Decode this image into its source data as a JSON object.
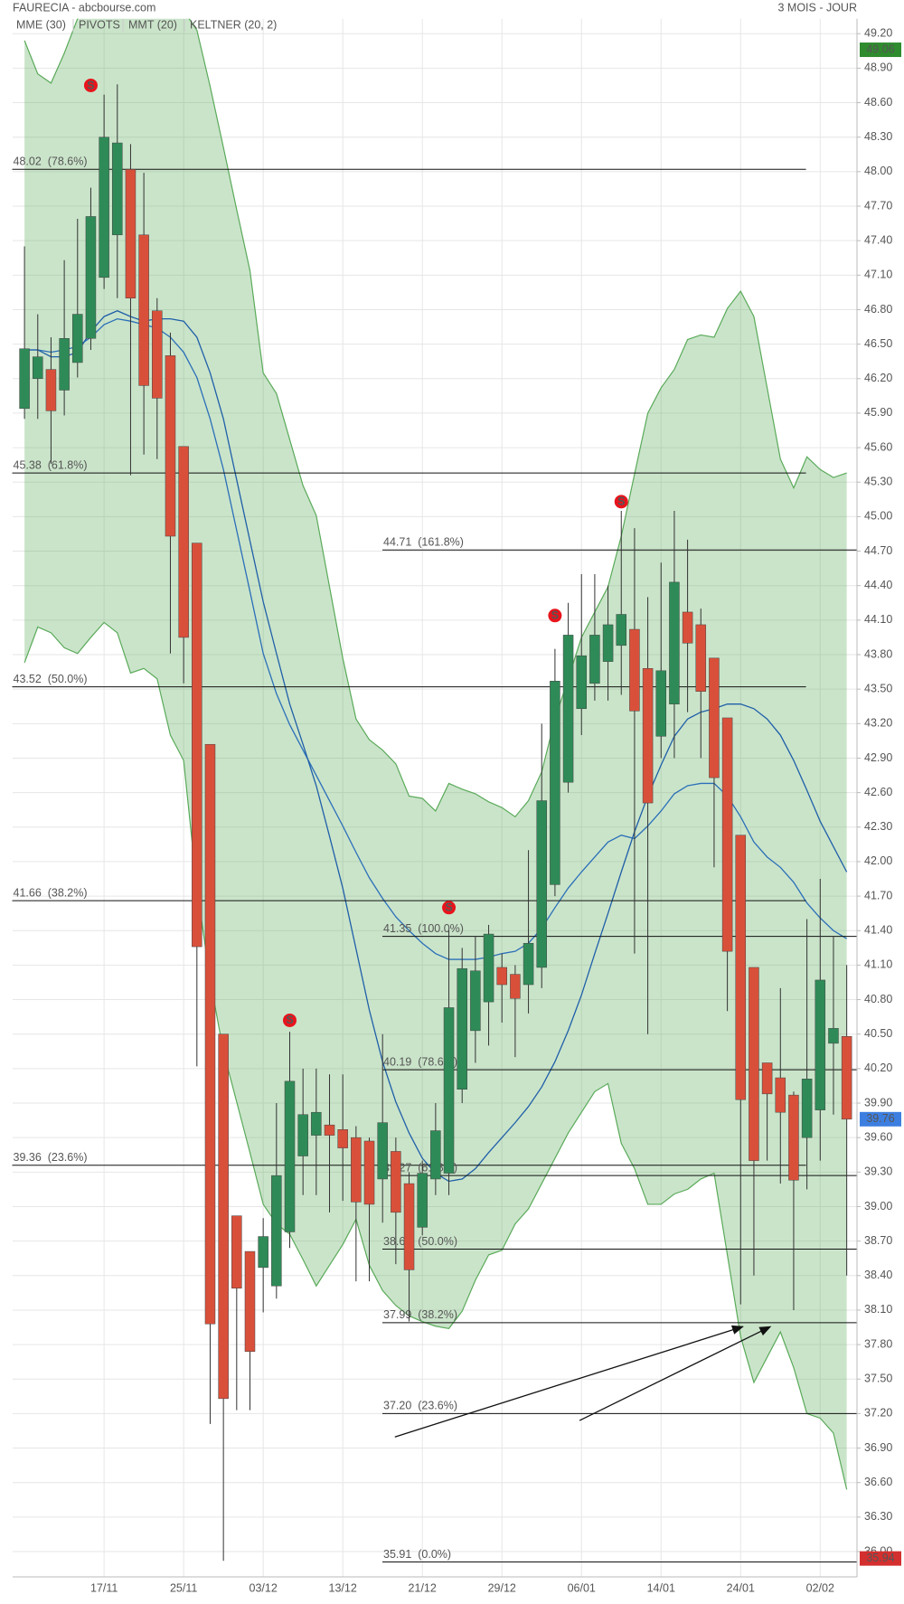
{
  "chart_data": {
    "type": "candlestick",
    "title": "FAURECIA - abcbourse.com",
    "period": "3 MOIS - JOUR",
    "categories": [
      null,
      null,
      null,
      null,
      null,
      null,
      "17/11",
      null,
      null,
      null,
      null,
      null,
      "25/11",
      null,
      null,
      null,
      null,
      null,
      "03/12",
      null,
      null,
      null,
      null,
      null,
      "13/12",
      null,
      null,
      null,
      null,
      null,
      "21/12",
      null,
      null,
      null,
      null,
      null,
      "29/12",
      null,
      null,
      null,
      null,
      null,
      "06/01",
      null,
      null,
      null,
      null,
      null,
      "14/01",
      null,
      null,
      null,
      null,
      null,
      "24/01",
      null,
      null,
      null,
      null,
      null,
      "02/02",
      null,
      null
    ],
    "open": [
      45.94,
      46.2,
      46.28,
      46.1,
      46.34,
      46.55,
      47.08,
      47.45,
      48.02,
      47.45,
      46.79,
      46.4,
      45.61,
      44.77,
      43.02,
      40.5,
      38.92,
      38.61,
      38.47,
      38.31,
      38.78,
      39.44,
      39.62,
      39.71,
      39.67,
      39.6,
      39.57,
      39.24,
      39.48,
      39.2,
      38.82,
      39.24,
      39.29,
      40.02,
      40.53,
      40.78,
      41.08,
      41.02,
      40.93,
      41.08,
      41.8,
      42.69,
      43.33,
      43.55,
      43.74,
      43.88,
      44.02,
      43.68,
      43.09,
      43.37,
      44.17,
      44.06,
      43.77,
      43.25,
      42.23,
      41.08,
      40.25,
      40.12,
      39.97,
      39.6,
      39.84,
      40.42,
      40.48
    ],
    "high": [
      47.35,
      46.76,
      46.56,
      47.23,
      47.59,
      47.86,
      48.67,
      48.76,
      48.24,
      47.99,
      46.9,
      46.6,
      45.61,
      44.77,
      43.02,
      40.5,
      38.92,
      38.61,
      38.9,
      39.9,
      40.52,
      40.2,
      40.2,
      40.15,
      40.15,
      39.7,
      39.6,
      40.5,
      39.6,
      39.3,
      39.4,
      39.9,
      41.4,
      41.25,
      41.35,
      41.45,
      41.2,
      41.1,
      42.1,
      43.2,
      43.85,
      44.25,
      44.5,
      44.5,
      44.4,
      45.05,
      44.9,
      44.3,
      44.6,
      45.05,
      44.8,
      44.2,
      43.77,
      43.25,
      42.23,
      41.08,
      40.25,
      40.9,
      40.0,
      41.5,
      41.85,
      41.35,
      41.1
    ],
    "low": [
      45.85,
      45.85,
      45.46,
      45.88,
      46.21,
      46.45,
      46.98,
      46.9,
      45.36,
      45.54,
      45.5,
      43.81,
      43.55,
      40.22,
      37.11,
      35.92,
      37.23,
      37.23,
      38.08,
      38.2,
      38.64,
      39.1,
      39.1,
      38.95,
      39.05,
      38.35,
      38.35,
      38.86,
      38.5,
      38.0,
      38.75,
      39.1,
      39.1,
      39.9,
      40.25,
      40.4,
      40.6,
      40.3,
      40.68,
      40.9,
      41.7,
      42.6,
      43.1,
      43.4,
      43.4,
      43.45,
      41.2,
      40.5,
      42.9,
      42.9,
      43.3,
      42.9,
      41.95,
      40.7,
      38.15,
      38.4,
      39.4,
      39.2,
      38.1,
      39.15,
      39.4,
      39.8,
      38.4
    ],
    "close": [
      46.46,
      46.39,
      45.92,
      46.55,
      46.76,
      47.61,
      48.3,
      48.25,
      46.9,
      46.14,
      46.03,
      44.83,
      43.95,
      41.26,
      37.98,
      37.33,
      38.29,
      37.74,
      38.74,
      39.27,
      40.09,
      39.8,
      39.82,
      39.62,
      39.51,
      39.04,
      39.02,
      39.73,
      38.95,
      38.45,
      39.29,
      39.66,
      40.73,
      41.07,
      41.05,
      41.37,
      40.93,
      40.81,
      41.29,
      42.53,
      43.57,
      43.97,
      43.79,
      43.97,
      44.06,
      44.15,
      43.31,
      42.51,
      43.66,
      44.43,
      43.9,
      43.48,
      42.73,
      41.22,
      39.93,
      39.4,
      39.98,
      39.82,
      39.23,
      40.11,
      40.97,
      40.55,
      39.76
    ],
    "up_color": "#2e8b57",
    "down_color": "#d9503a",
    "series": [
      {
        "name": "MME (30)",
        "color": "#2a6fb8",
        "values": [
          46.45,
          46.45,
          46.43,
          46.45,
          46.48,
          46.56,
          46.67,
          46.72,
          46.7,
          46.67,
          46.64,
          46.56,
          46.43,
          46.21,
          45.85,
          45.41,
          44.88,
          44.35,
          43.81,
          43.46,
          43.19,
          42.97,
          42.75,
          42.53,
          42.31,
          42.08,
          41.86,
          41.68,
          41.52,
          41.4,
          41.29,
          41.2,
          41.15,
          41.15,
          41.15,
          41.17,
          41.2,
          41.22,
          41.29,
          41.42,
          41.6,
          41.77,
          41.91,
          42.04,
          42.17,
          42.23,
          42.2,
          42.31,
          42.44,
          42.59,
          42.66,
          42.68,
          42.68,
          42.57,
          42.39,
          42.17,
          42.04,
          41.95,
          41.82,
          41.64,
          41.51,
          41.4,
          41.33
        ]
      },
      {
        "name": "PIVOTS",
        "color": "#666666"
      },
      {
        "name": "MMT (20)",
        "color": "#1f5fa8",
        "values": [
          46.45,
          46.45,
          46.39,
          46.39,
          46.43,
          46.61,
          46.74,
          46.79,
          46.74,
          46.7,
          46.72,
          46.72,
          46.7,
          46.56,
          46.25,
          45.85,
          45.32,
          44.79,
          44.26,
          43.81,
          43.37,
          43.02,
          42.66,
          42.22,
          41.77,
          41.24,
          40.71,
          40.26,
          39.91,
          39.64,
          39.42,
          39.29,
          39.22,
          39.24,
          39.33,
          39.47,
          39.6,
          39.73,
          39.87,
          40.04,
          40.26,
          40.53,
          40.84,
          41.2,
          41.55,
          41.91,
          42.26,
          42.57,
          42.84,
          43.09,
          43.24,
          43.3,
          43.33,
          43.37,
          43.37,
          43.33,
          43.24,
          43.1,
          42.88,
          42.62,
          42.35,
          42.13,
          41.91
        ]
      },
      {
        "name": "KELTNER (20, 2)",
        "color": "#5aaa5a",
        "upper": [
          49.14,
          48.85,
          48.77,
          49.03,
          49.33,
          49.4,
          49.45,
          49.45,
          49.45,
          49.45,
          49.45,
          49.45,
          49.4,
          49.23,
          48.74,
          48.21,
          47.67,
          47.14,
          46.25,
          46.07,
          45.67,
          45.27,
          45.01,
          44.39,
          43.77,
          43.24,
          43.06,
          42.97,
          42.85,
          42.57,
          42.55,
          42.44,
          42.68,
          42.63,
          42.59,
          42.52,
          42.47,
          42.39,
          42.53,
          42.78,
          43.24,
          43.59,
          43.95,
          44.17,
          44.39,
          44.83,
          45.37,
          45.9,
          46.12,
          46.28,
          46.54,
          46.58,
          46.56,
          46.81,
          46.96,
          46.74,
          46.12,
          45.5,
          45.25,
          45.52,
          45.41,
          45.34,
          45.38
        ],
        "lower": [
          43.73,
          44.04,
          43.99,
          43.86,
          43.81,
          43.95,
          44.08,
          43.99,
          43.64,
          43.68,
          43.59,
          43.1,
          42.88,
          41.77,
          40.97,
          40.35,
          39.91,
          39.47,
          39.02,
          38.85,
          38.76,
          38.54,
          38.31,
          38.49,
          38.67,
          38.89,
          38.49,
          38.27,
          38.14,
          38.05,
          38.0,
          37.96,
          37.94,
          38.09,
          38.36,
          38.58,
          38.62,
          38.85,
          38.98,
          39.2,
          39.42,
          39.64,
          39.82,
          40.0,
          40.07,
          39.55,
          39.33,
          39.02,
          39.02,
          39.11,
          39.15,
          39.24,
          39.29,
          38.58,
          37.87,
          37.47,
          37.69,
          37.91,
          37.6,
          37.2,
          37.16,
          37.03,
          36.54
        ]
      }
    ],
    "signals": {
      "label": "S",
      "color": "#e8141c",
      "values": [
        null,
        null,
        null,
        null,
        null,
        48.75,
        null,
        null,
        null,
        null,
        null,
        null,
        null,
        null,
        null,
        null,
        null,
        null,
        null,
        null,
        40.62,
        null,
        null,
        null,
        null,
        null,
        null,
        null,
        null,
        null,
        null,
        null,
        41.6,
        null,
        null,
        null,
        null,
        null,
        null,
        null,
        44.14,
        null,
        null,
        null,
        null,
        45.13,
        null,
        null,
        null,
        null,
        null,
        null,
        null,
        null,
        null,
        null,
        null,
        null,
        null,
        null,
        null,
        null,
        null
      ]
    },
    "fib_sets": [
      {
        "levels": [
          {
            "value": 48.02,
            "label": "48.02  (78.6%)"
          },
          {
            "value": 45.38,
            "label": "45.38  (61.8%)"
          },
          {
            "value": 43.52,
            "label": "43.52  (50.0%)"
          },
          {
            "value": 41.66,
            "label": "41.66  (38.2%)"
          },
          {
            "value": 39.36,
            "label": "39.36  (23.6%)"
          }
        ]
      },
      {
        "levels": [
          {
            "value": 44.71,
            "label": "44.71  (161.8%)"
          },
          {
            "value": 41.35,
            "label": "41.35  (100.0%)"
          },
          {
            "value": 40.19,
            "label": "40.19  (78.6%)"
          },
          {
            "value": 39.27,
            "label": "39.27  (61.8%)"
          },
          {
            "value": 38.63,
            "label": "38.63  (50.0%)"
          },
          {
            "value": 37.99,
            "label": "37.99  (38.2%)"
          },
          {
            "value": 37.2,
            "label": "37.20  (23.6%)"
          },
          {
            "value": 35.91,
            "label": "35.91  (0.0%)"
          }
        ]
      }
    ],
    "price_tags": [
      {
        "value": 49.06,
        "color": "#2e8b2e"
      },
      {
        "value": 39.76,
        "color": "#3d7fe0"
      },
      {
        "value": 35.94,
        "color": "#d32f2f"
      }
    ],
    "ylim": [
      35.78,
      49.33
    ],
    "yticks": [
      {
        "value": 36.0,
        "label": "36.00"
      },
      {
        "value": 36.3,
        "label": "36.30"
      },
      {
        "value": 36.6,
        "label": "36.60"
      },
      {
        "value": 36.9,
        "label": "36.90"
      },
      {
        "value": 37.2,
        "label": "37.20"
      },
      {
        "value": 37.5,
        "label": "37.50"
      },
      {
        "value": 37.8,
        "label": "37.80"
      },
      {
        "value": 38.1,
        "label": "38.10"
      },
      {
        "value": 38.4,
        "label": "38.40"
      },
      {
        "value": 38.7,
        "label": "38.70"
      },
      {
        "value": 39.0,
        "label": "39.00"
      },
      {
        "value": 39.3,
        "label": "39.30"
      },
      {
        "value": 39.6,
        "label": "39.60"
      },
      {
        "value": 39.9,
        "label": "39.90"
      },
      {
        "value": 40.2,
        "label": "40.20"
      },
      {
        "value": 40.5,
        "label": "40.50"
      },
      {
        "value": 40.8,
        "label": "40.80"
      },
      {
        "value": 41.1,
        "label": "41.10"
      },
      {
        "value": 41.4,
        "label": "41.40"
      },
      {
        "value": 41.7,
        "label": "41.70"
      },
      {
        "value": 42.0,
        "label": "42.00"
      },
      {
        "value": 42.3,
        "label": "42.30"
      },
      {
        "value": 42.6,
        "label": "42.60"
      },
      {
        "value": 42.9,
        "label": "42.90"
      },
      {
        "value": 43.2,
        "label": "43.20"
      },
      {
        "value": 43.5,
        "label": "43.50"
      },
      {
        "value": 43.8,
        "label": "43.80"
      },
      {
        "value": 44.1,
        "label": "44.10"
      },
      {
        "value": 44.4,
        "label": "44.40"
      },
      {
        "value": 44.7,
        "label": "44.70"
      },
      {
        "value": 45.0,
        "label": "45.00"
      },
      {
        "value": 45.3,
        "label": "45.30"
      },
      {
        "value": 45.6,
        "label": "45.60"
      },
      {
        "value": 45.9,
        "label": "45.90"
      },
      {
        "value": 46.2,
        "label": "46.20"
      },
      {
        "value": 46.5,
        "label": "46.50"
      },
      {
        "value": 46.8,
        "label": "46.80"
      },
      {
        "value": 47.1,
        "label": "47.10"
      },
      {
        "value": 47.4,
        "label": "47.40"
      },
      {
        "value": 47.7,
        "label": "47.70"
      },
      {
        "value": 48.0,
        "label": "48.00"
      },
      {
        "value": 48.3,
        "label": "48.30"
      },
      {
        "value": 48.6,
        "label": "48.60"
      },
      {
        "value": 48.9,
        "label": "48.90"
      },
      {
        "value": 49.2,
        "label": "49.20"
      }
    ],
    "grid": true
  }
}
